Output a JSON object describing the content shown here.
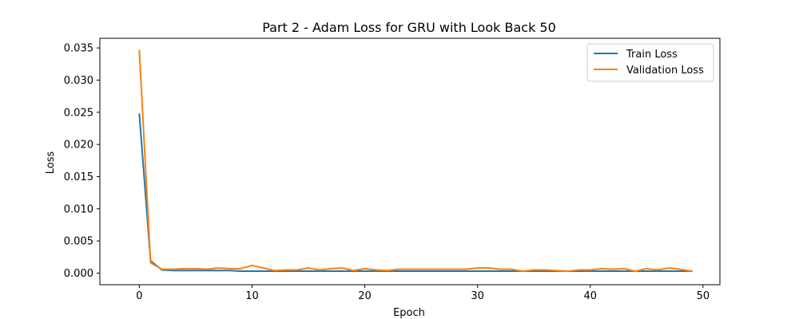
{
  "chart_data": {
    "type": "line",
    "title": "Part 2 - Adam Loss for GRU with Look Back 50",
    "xlabel": "Epoch",
    "ylabel": "Loss",
    "xlim": [
      -3.5,
      51.5
    ],
    "ylim": [
      -0.0018,
      0.0365
    ],
    "x_ticks": [
      0,
      10,
      20,
      30,
      40,
      50
    ],
    "x_tick_labels": [
      "0",
      "10",
      "20",
      "30",
      "40",
      "50"
    ],
    "y_ticks": [
      0.0,
      0.005,
      0.01,
      0.015,
      0.02,
      0.025,
      0.03,
      0.035
    ],
    "y_tick_labels": [
      "0.000",
      "0.005",
      "0.010",
      "0.015",
      "0.020",
      "0.025",
      "0.030",
      "0.035"
    ],
    "grid": false,
    "legend_position": "top-right",
    "x": [
      0,
      1,
      2,
      3,
      4,
      5,
      6,
      7,
      8,
      9,
      10,
      11,
      12,
      13,
      14,
      15,
      16,
      17,
      18,
      19,
      20,
      21,
      22,
      23,
      24,
      25,
      26,
      27,
      28,
      29,
      30,
      31,
      32,
      33,
      34,
      35,
      36,
      37,
      38,
      39,
      40,
      41,
      42,
      43,
      44,
      45,
      46,
      47,
      48,
      49
    ],
    "series": [
      {
        "name": "Train Loss",
        "color": "#1f77b4",
        "values": [
          0.0247,
          0.0019,
          0.0005,
          0.0004,
          0.0004,
          0.0004,
          0.0004,
          0.0004,
          0.0004,
          0.0003,
          0.0003,
          0.0003,
          0.0003,
          0.0003,
          0.0003,
          0.0003,
          0.0003,
          0.0003,
          0.0003,
          0.0003,
          0.0003,
          0.0003,
          0.0003,
          0.0003,
          0.0003,
          0.0003,
          0.0003,
          0.0003,
          0.0003,
          0.0003,
          0.0003,
          0.0003,
          0.0003,
          0.0003,
          0.0003,
          0.0003,
          0.0003,
          0.0003,
          0.0003,
          0.0003,
          0.0003,
          0.0003,
          0.0003,
          0.0003,
          0.0003,
          0.0003,
          0.0003,
          0.0003,
          0.0003,
          0.0003
        ]
      },
      {
        "name": "Validation Loss",
        "color": "#ff7f0e",
        "values": [
          0.0346,
          0.0016,
          0.0006,
          0.0006,
          0.0007,
          0.0007,
          0.0006,
          0.0008,
          0.0007,
          0.0007,
          0.0012,
          0.0008,
          0.0004,
          0.0005,
          0.0005,
          0.0008,
          0.0005,
          0.0007,
          0.0008,
          0.0004,
          0.0007,
          0.0005,
          0.0004,
          0.0006,
          0.0006,
          0.0006,
          0.0006,
          0.0006,
          0.0006,
          0.0006,
          0.0008,
          0.0008,
          0.0006,
          0.0006,
          0.0003,
          0.0005,
          0.0005,
          0.0004,
          0.0003,
          0.0005,
          0.0005,
          0.0007,
          0.0006,
          0.0007,
          0.0003,
          0.0007,
          0.0005,
          0.0008,
          0.0006,
          0.0003
        ]
      }
    ]
  }
}
